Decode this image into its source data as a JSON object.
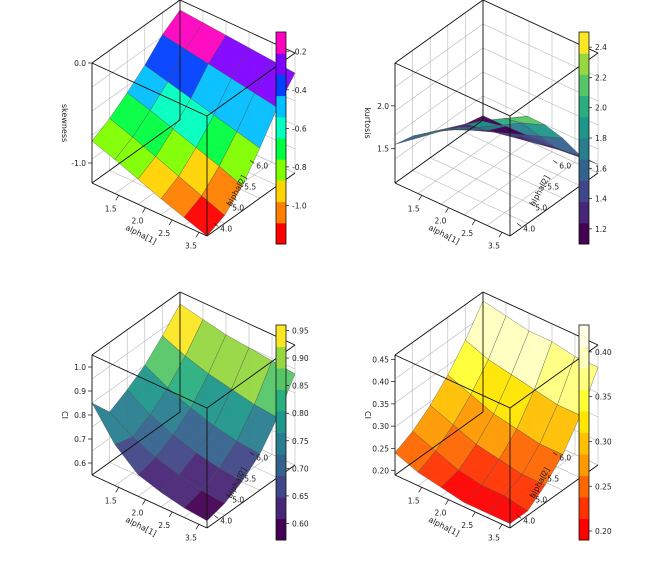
{
  "chart_data": [
    {
      "type": "surface",
      "zlabel": "skewness",
      "xlabel": "alpha[1]",
      "ylabel": "alpha[2]",
      "xticks": [
        "1.5",
        "2.0",
        "2.5",
        "3.5"
      ],
      "yticks": [
        "4.0",
        "5.0",
        "5.5",
        "6.0"
      ],
      "zticks": [
        "0.0",
        "-1.0"
      ],
      "zlim": [
        -1.2,
        0.0
      ],
      "colorbar": {
        "ticks": [
          "-0.2",
          "-0.4",
          "-0.6",
          "-0.8",
          "-1.0"
        ],
        "range": [
          -1.2,
          -0.1
        ],
        "palette": [
          "#ff0000",
          "#ff7f00",
          "#ffd400",
          "#7fff00",
          "#00ff40",
          "#00ffbf",
          "#00bfff",
          "#0040ff",
          "#7f00ff",
          "#ff00bf"
        ]
      },
      "alpha1": [
        1.0,
        1.5,
        2.0,
        2.5,
        3.0,
        3.5
      ],
      "alpha2": [
        3.5,
        4.0,
        4.5,
        5.0,
        5.5,
        6.0
      ],
      "z": [
        [
          -0.1,
          -0.12,
          -0.14,
          -0.16,
          -0.18,
          -0.2
        ],
        [
          -0.22,
          -0.26,
          -0.3,
          -0.34,
          -0.38,
          -0.42
        ],
        [
          -0.4,
          -0.46,
          -0.52,
          -0.58,
          -0.64,
          -0.7
        ],
        [
          -0.55,
          -0.62,
          -0.7,
          -0.78,
          -0.86,
          -0.95
        ],
        [
          -0.68,
          -0.76,
          -0.85,
          -0.94,
          -1.03,
          -1.12
        ],
        [
          -0.78,
          -0.86,
          -0.95,
          -1.04,
          -1.12,
          -1.2
        ]
      ]
    },
    {
      "type": "surface",
      "zlabel": "kurtosis",
      "xlabel": "alpha[1]",
      "ylabel": "alpha[2]",
      "xticks": [
        "1.5",
        "2.0",
        "2.5",
        "3.5"
      ],
      "yticks": [
        "4.0",
        "5.0",
        "5.5",
        "6.0"
      ],
      "zticks": [
        "2.0",
        "1.5"
      ],
      "zlim": [
        1.1,
        2.5
      ],
      "colorbar": {
        "ticks": [
          "2.4",
          "2.2",
          "2.0",
          "1.8",
          "1.6",
          "1.4",
          "1.2"
        ],
        "range": [
          1.1,
          2.5
        ],
        "palette": [
          "#440154",
          "#482677",
          "#404788",
          "#33638d",
          "#287d8e",
          "#1f968b",
          "#29af7f",
          "#55c667",
          "#95d840",
          "#fde725"
        ]
      },
      "alpha1": [
        1.0,
        1.5,
        2.0,
        2.5,
        3.0,
        3.5
      ],
      "alpha2": [
        3.5,
        4.0,
        4.5,
        5.0,
        5.5,
        6.0
      ],
      "z": [
        [
          1.15,
          1.15,
          1.16,
          1.17,
          1.18,
          1.2
        ],
        [
          1.2,
          1.25,
          1.3,
          1.35,
          1.4,
          1.45
        ],
        [
          1.3,
          1.4,
          1.5,
          1.6,
          1.7,
          1.8
        ],
        [
          1.4,
          1.55,
          1.7,
          1.85,
          2.0,
          2.1
        ],
        [
          1.5,
          1.68,
          1.85,
          2.05,
          2.2,
          2.35
        ],
        [
          1.55,
          1.75,
          1.95,
          2.15,
          2.3,
          2.45
        ]
      ]
    },
    {
      "type": "surface",
      "zlabel": "CI",
      "xlabel": "alpha[1]",
      "ylabel": "alpha[2]",
      "xticks": [
        "1.5",
        "2.0",
        "2.5",
        "3.5"
      ],
      "yticks": [
        "4.0",
        "5.0",
        "5.5",
        "6.0"
      ],
      "zticks": [
        "1.0",
        "0.9",
        "0.8",
        "0.7",
        "0.6"
      ],
      "zlim": [
        0.55,
        1.05
      ],
      "colorbar": {
        "ticks": [
          "0.95",
          "0.90",
          "0.85",
          "0.80",
          "0.75",
          "0.70",
          "0.65",
          "0.60"
        ],
        "range": [
          0.57,
          0.96
        ],
        "palette": [
          "#440154",
          "#482677",
          "#404788",
          "#33638d",
          "#287d8e",
          "#1f968b",
          "#29af7f",
          "#55c667",
          "#95d840",
          "#fde725"
        ]
      },
      "alpha1": [
        1.0,
        1.5,
        2.0,
        2.5,
        3.0,
        3.5
      ],
      "alpha2": [
        3.5,
        4.0,
        4.5,
        5.0,
        5.5,
        6.0
      ],
      "z": [
        [
          1.0,
          0.98,
          0.96,
          0.95,
          0.94,
          0.93
        ],
        [
          0.92,
          0.88,
          0.85,
          0.83,
          0.81,
          0.8
        ],
        [
          0.85,
          0.8,
          0.76,
          0.73,
          0.71,
          0.7
        ],
        [
          0.8,
          0.74,
          0.7,
          0.67,
          0.65,
          0.64
        ],
        [
          0.76,
          0.7,
          0.66,
          0.63,
          0.61,
          0.6
        ],
        [
          0.85,
          0.72,
          0.64,
          0.61,
          0.59,
          0.58
        ]
      ]
    },
    {
      "type": "surface",
      "zlabel": "CI",
      "xlabel": "alpha[1]",
      "ylabel": "alpha[2]",
      "xticks": [
        "1.5",
        "2.0",
        "2.5",
        "3.5"
      ],
      "yticks": [
        "4.0",
        "5.0",
        "5.5",
        "6.0"
      ],
      "zticks": [
        "0.45",
        "0.40",
        "0.35",
        "0.30",
        "0.25",
        "0.20"
      ],
      "zlim": [
        0.19,
        0.46
      ],
      "colorbar": {
        "ticks": [
          "0.40",
          "0.35",
          "0.30",
          "0.25",
          "0.20"
        ],
        "range": [
          0.19,
          0.43
        ],
        "palette": [
          "#ff0000",
          "#ff3300",
          "#ff6600",
          "#ff9900",
          "#ffbf00",
          "#ffe600",
          "#ffff33",
          "#ffff80",
          "#ffffbf",
          "#ffffe8"
        ]
      },
      "alpha1": [
        1.0,
        1.5,
        2.0,
        2.5,
        3.0,
        3.5
      ],
      "alpha2": [
        3.5,
        4.0,
        4.5,
        5.0,
        5.5,
        6.0
      ],
      "z": [
        [
          0.44,
          0.43,
          0.42,
          0.42,
          0.41,
          0.41
        ],
        [
          0.38,
          0.36,
          0.35,
          0.34,
          0.33,
          0.33
        ],
        [
          0.33,
          0.31,
          0.29,
          0.28,
          0.27,
          0.27
        ],
        [
          0.29,
          0.27,
          0.25,
          0.24,
          0.23,
          0.23
        ],
        [
          0.26,
          0.24,
          0.22,
          0.21,
          0.21,
          0.2
        ],
        [
          0.24,
          0.22,
          0.21,
          0.2,
          0.2,
          0.2
        ]
      ]
    }
  ]
}
